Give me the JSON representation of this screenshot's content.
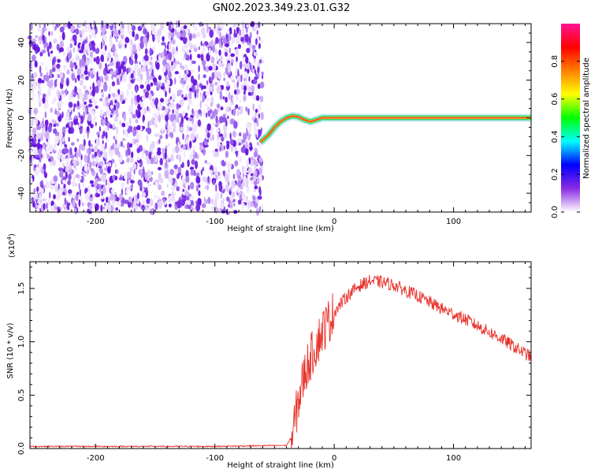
{
  "figure": {
    "title": "GN02.2023.349.23.01.G32"
  },
  "chart_data": [
    {
      "type": "heatmap",
      "name": "spectrogram",
      "xlabel": "Height of straight line (km)",
      "ylabel": "Frequency (Hz)",
      "xlim": [
        -255,
        165
      ],
      "ylim": [
        -50,
        50
      ],
      "x_ticks": [
        -200,
        -100,
        0,
        100
      ],
      "y_ticks": [
        -40,
        -20,
        0,
        20,
        40
      ],
      "noise_region_x": [
        -255,
        -60
      ],
      "trace": {
        "x": [
          -62,
          -55,
          -50,
          -45,
          -40,
          -35,
          -30,
          -25,
          -20,
          -10,
          0,
          20,
          40,
          60,
          80,
          100,
          120,
          140,
          165
        ],
        "y": [
          -13,
          -9,
          -5,
          -2,
          0,
          1,
          0.5,
          -1,
          -2,
          0,
          0,
          0,
          0,
          0,
          0,
          0,
          0,
          0,
          0
        ]
      },
      "colorbar": {
        "label": "Normalized spectral amplitude",
        "ticks": [
          0.0,
          0.2,
          0.4,
          0.6,
          0.8
        ],
        "range": [
          0,
          1
        ],
        "colormap": [
          "#ffffff",
          "#8a2be2",
          "#0000ff",
          "#00ffff",
          "#00ff00",
          "#ffff00",
          "#ff8000",
          "#ff0000",
          "#ff1493"
        ]
      },
      "grid": false
    },
    {
      "type": "line",
      "name": "snr",
      "xlabel": "Height of straight line (km)",
      "ylabel": "SNR (10 * v/v)",
      "y_multiplier_label": "(x10",
      "y_multiplier_exp": "4",
      "y_multiplier_close": ")",
      "xlim": [
        -255,
        165
      ],
      "ylim": [
        0,
        1.75
      ],
      "x_ticks": [
        -200,
        -100,
        0,
        100
      ],
      "y_ticks": [
        0.0,
        0.5,
        1.0,
        1.5
      ],
      "y_tick_labels": [
        "0.0",
        "0.5",
        "1.0",
        "1.5"
      ],
      "series": [
        {
          "color": "#e8322b",
          "x": [
            -255,
            -100,
            -40,
            -35,
            -30,
            -25,
            -20,
            -10,
            0,
            10,
            20,
            30,
            40,
            50,
            60,
            70,
            80,
            90,
            100,
            110,
            120,
            130,
            140,
            150,
            160,
            165
          ],
          "y": [
            0.02,
            0.02,
            0.03,
            0.12,
            0.45,
            0.7,
            0.85,
            1.1,
            1.28,
            1.42,
            1.52,
            1.57,
            1.56,
            1.53,
            1.48,
            1.43,
            1.37,
            1.31,
            1.26,
            1.21,
            1.15,
            1.09,
            1.03,
            0.96,
            0.89,
            0.86
          ]
        }
      ],
      "grid": false
    }
  ]
}
